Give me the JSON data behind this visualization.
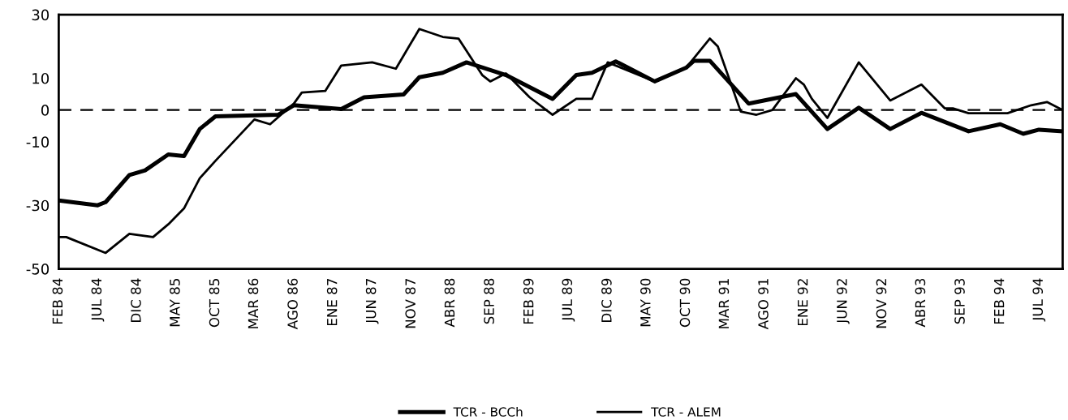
{
  "chart_data": {
    "type": "line",
    "xlim": [
      "1984-02",
      "1994-10"
    ],
    "xticks": [
      {
        "value": "1984-02",
        "label": "FEB 84"
      },
      {
        "value": "1984-07",
        "label": "JUL 84"
      },
      {
        "value": "1984-12",
        "label": "DIC 84"
      },
      {
        "value": "1985-05",
        "label": "MAY 85"
      },
      {
        "value": "1985-10",
        "label": "OCT 85"
      },
      {
        "value": "1986-03",
        "label": "MAR 86"
      },
      {
        "value": "1986-08",
        "label": "AGO 86"
      },
      {
        "value": "1987-01",
        "label": "ENE 87"
      },
      {
        "value": "1987-06",
        "label": "JUN 87"
      },
      {
        "value": "1987-11",
        "label": "NOV 87"
      },
      {
        "value": "1988-04",
        "label": "ABR 88"
      },
      {
        "value": "1988-09",
        "label": "SEP 88"
      },
      {
        "value": "1989-02",
        "label": "FEB 89"
      },
      {
        "value": "1989-07",
        "label": "JUL 89"
      },
      {
        "value": "1989-12",
        "label": "DIC 89"
      },
      {
        "value": "1990-05",
        "label": "MAY 90"
      },
      {
        "value": "1990-10",
        "label": "OCT 90"
      },
      {
        "value": "1991-03",
        "label": "MAR 91"
      },
      {
        "value": "1991-08",
        "label": "AGO 91"
      },
      {
        "value": "1992-01",
        "label": "ENE 92"
      },
      {
        "value": "1992-06",
        "label": "JUN 92"
      },
      {
        "value": "1992-11",
        "label": "NOV 92"
      },
      {
        "value": "1993-04",
        "label": "ABR 93"
      },
      {
        "value": "1993-09",
        "label": "SEP 93"
      },
      {
        "value": "1994-02",
        "label": "FEB 94"
      },
      {
        "value": "1994-07",
        "label": "JUL 94"
      }
    ],
    "ylim": [
      -50,
      30
    ],
    "yticks": [
      30,
      10,
      0,
      -10,
      -30,
      -50
    ],
    "grid": false,
    "legend": "bottom",
    "marker": "none",
    "line_style": "solid",
    "ref_lines": [
      {
        "axis": "y",
        "value": 0,
        "line_style": "dashed",
        "color": "#000000"
      }
    ],
    "series": [
      {
        "name": "TCR - BCCh",
        "color": "#000000",
        "x": [
          "1984-02",
          "1984-07",
          "1984-08",
          "1984-11",
          "1985-01",
          "1985-04",
          "1985-06",
          "1985-08",
          "1985-10",
          "1986-06",
          "1986-08",
          "1987-02",
          "1987-05",
          "1987-10",
          "1987-12",
          "1988-03",
          "1988-06",
          "1988-11",
          "1989-05",
          "1989-08",
          "1989-10",
          "1990-01",
          "1990-06",
          "1990-10",
          "1990-11",
          "1991-01",
          "1991-06",
          "1991-12",
          "1992-04",
          "1992-08",
          "1992-12",
          "1993-04",
          "1993-10",
          "1994-02",
          "1994-05",
          "1994-07",
          "1994-10"
        ],
        "values": [
          -28.5,
          -30,
          -29,
          -20.5,
          -19,
          -14,
          -14.5,
          -6,
          -2,
          -1.5,
          1.5,
          0.3,
          4,
          4.9,
          10.3,
          11.7,
          15,
          11,
          3.5,
          11,
          11.7,
          15.3,
          9,
          13.3,
          15.5,
          15.5,
          2,
          5,
          -6,
          0.7,
          -6,
          -0.9,
          -6.7,
          -4.5,
          -7.5,
          -6.2,
          -6.7
        ]
      },
      {
        "name": "TCR - ALEM",
        "color": "#000000",
        "x": [
          "1984-02",
          "1984-03",
          "1984-08",
          "1984-11",
          "1985-02",
          "1985-04",
          "1985-06",
          "1985-08",
          "1985-10",
          "1986-03",
          "1986-05",
          "1986-08",
          "1986-09",
          "1986-12",
          "1987-02",
          "1987-06",
          "1987-09",
          "1987-12",
          "1988-03",
          "1988-05",
          "1988-08",
          "1988-09",
          "1988-11",
          "1989-02",
          "1989-05",
          "1989-08",
          "1989-10",
          "1989-12",
          "1990-06",
          "1990-10",
          "1991-01",
          "1991-02",
          "1991-05",
          "1991-07",
          "1991-09",
          "1991-12",
          "1992-01",
          "1992-02",
          "1992-04",
          "1992-08",
          "1992-12",
          "1993-04",
          "1993-07",
          "1993-08",
          "1993-10",
          "1994-03",
          "1994-06",
          "1994-08",
          "1994-10"
        ],
        "values": [
          -40,
          -40,
          -45,
          -39,
          -40,
          -36,
          -31,
          -21.5,
          -16,
          -3,
          -4.5,
          2,
          5.5,
          6,
          14,
          15,
          13,
          25.5,
          23,
          22.5,
          11,
          9,
          11.5,
          4,
          -1.5,
          3.5,
          3.5,
          15,
          9,
          13.3,
          22.5,
          20,
          -0.5,
          -1.5,
          0,
          10,
          8,
          3.5,
          -2.5,
          15,
          3,
          8,
          0.5,
          0.5,
          -1,
          -1,
          1.5,
          2.5,
          0
        ]
      }
    ]
  }
}
